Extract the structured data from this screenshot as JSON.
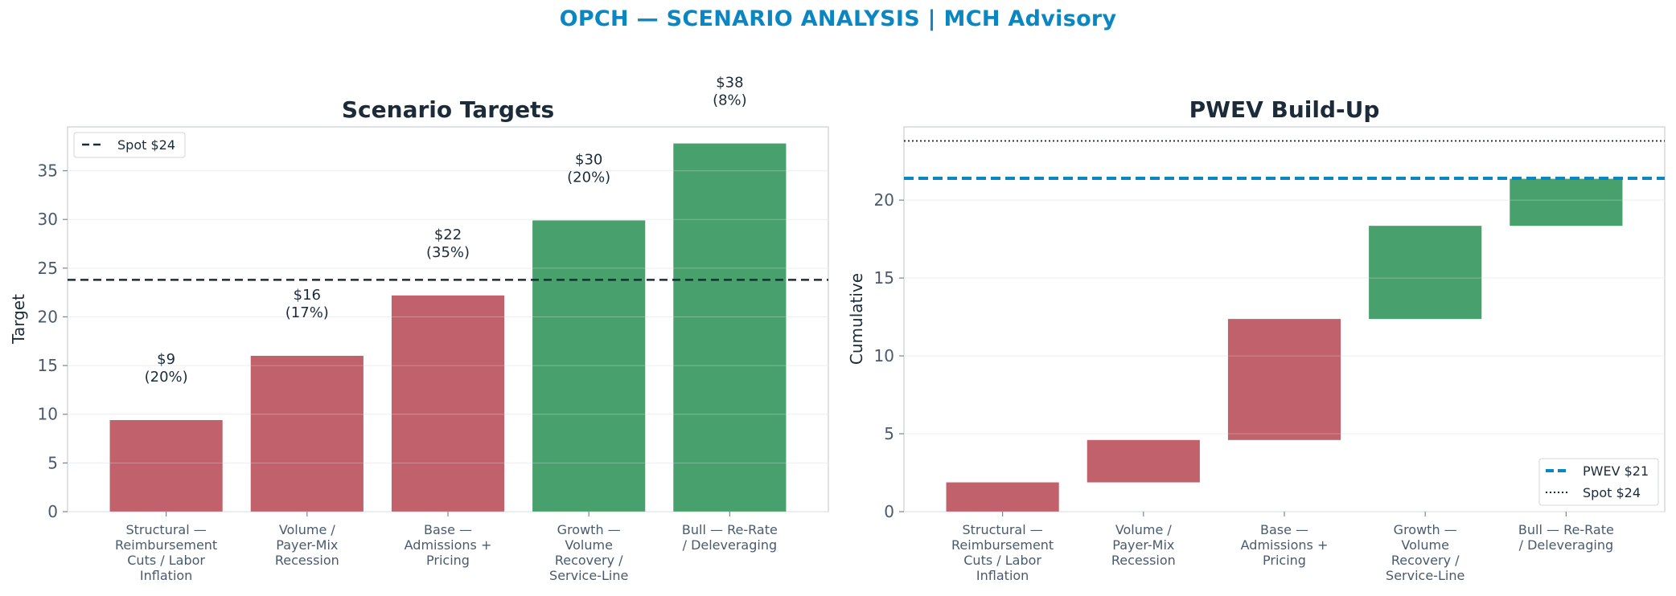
{
  "suptitle": "OPCH — SCENARIO ANALYSIS | MCH Advisory",
  "colors": {
    "bear": "#c0616b",
    "bull": "#48a06c",
    "spot": "#1c2b3a",
    "pwev": "#0a87c2",
    "title": "#0a87c2"
  },
  "chart_data": [
    {
      "type": "bar",
      "title": "Scenario Targets",
      "xlabel": "",
      "ylabel": "Target",
      "ylim": [
        0,
        39.5
      ],
      "yticks": [
        0,
        5,
        10,
        15,
        20,
        25,
        30,
        35
      ],
      "categories": [
        [
          "Structural —",
          "Reimbursement",
          "Cuts / Labor",
          "Inflation"
        ],
        [
          "Volume /",
          "Payer-Mix",
          "Recession"
        ],
        [
          "Base —",
          "Admissions +",
          "Pricing"
        ],
        [
          "Growth —",
          "Volume",
          "Recovery /",
          "Service-Line"
        ],
        [
          "Bull — Re-Rate",
          "/ Deleveraging"
        ]
      ],
      "values": [
        9.4,
        16.0,
        22.2,
        29.9,
        37.8
      ],
      "bar_colors": [
        "bear",
        "bear",
        "bear",
        "bull",
        "bull"
      ],
      "data_labels": [
        {
          "price": "$9",
          "prob": "(20%)"
        },
        {
          "price": "$16",
          "prob": "(17%)"
        },
        {
          "price": "$22",
          "prob": "(35%)"
        },
        {
          "price": "$30",
          "prob": "(20%)"
        },
        {
          "price": "$38",
          "prob": "(8%)"
        }
      ],
      "reference_lines": [
        {
          "name": "Spot $24",
          "y": 23.8,
          "style": "dashed",
          "color": "spot"
        }
      ],
      "legend": {
        "position": "top-left",
        "entries": [
          "Spot $24"
        ]
      },
      "grid": true
    },
    {
      "type": "waterfall",
      "title": "PWEV Build-Up",
      "xlabel": "",
      "ylabel": "Cumulative",
      "ylim": [
        0,
        24.7
      ],
      "yticks": [
        0,
        5,
        10,
        15,
        20
      ],
      "categories": [
        [
          "Structural —",
          "Reimbursement",
          "Cuts / Labor",
          "Inflation"
        ],
        [
          "Volume /",
          "Payer-Mix",
          "Recession"
        ],
        [
          "Base —",
          "Admissions +",
          "Pricing"
        ],
        [
          "Growth —",
          "Volume",
          "Recovery /",
          "Service-Line"
        ],
        [
          "Bull — Re-Rate",
          "/ Deleveraging"
        ]
      ],
      "values": [
        1.88,
        2.72,
        7.77,
        5.98,
        3.02
      ],
      "cumulative": [
        1.88,
        4.6,
        12.37,
        18.35,
        21.37
      ],
      "bar_colors": [
        "bear",
        "bear",
        "bear",
        "bull",
        "bull"
      ],
      "reference_lines": [
        {
          "name": "PWEV $21",
          "y": 21.4,
          "style": "dashed",
          "color": "pwev"
        },
        {
          "name": "Spot $24",
          "y": 23.8,
          "style": "dotted",
          "color": "spot"
        }
      ],
      "legend": {
        "position": "bottom-right",
        "entries": [
          "PWEV $21",
          "Spot $24"
        ]
      },
      "grid": true
    }
  ]
}
